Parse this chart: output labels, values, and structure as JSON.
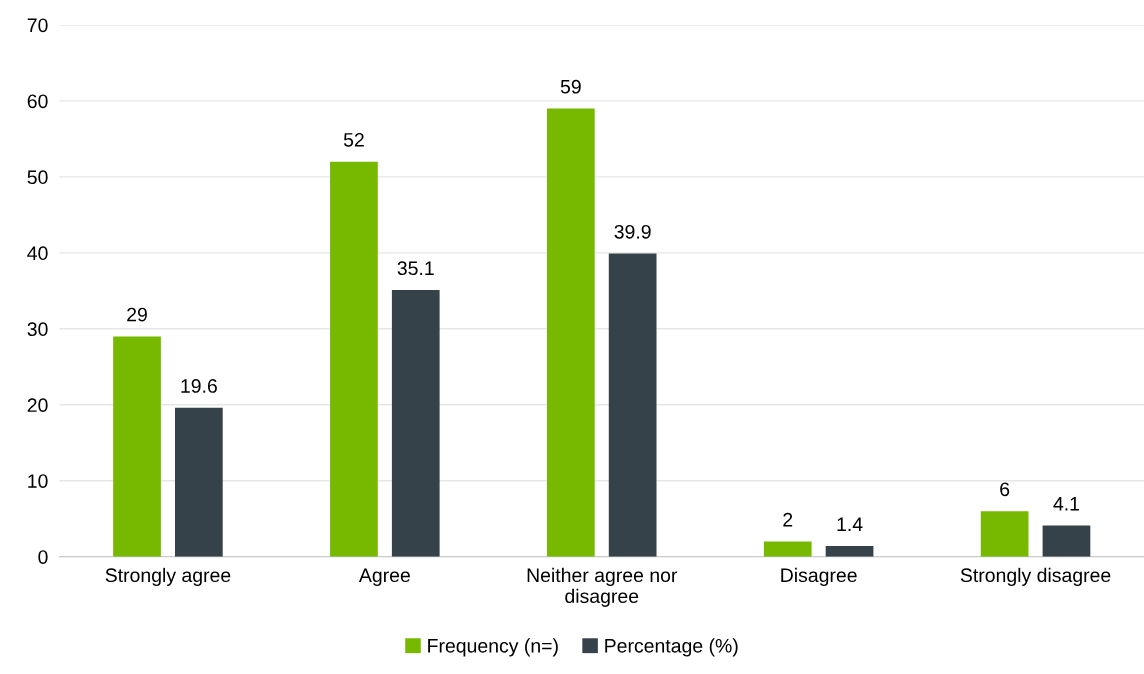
{
  "chart_data": {
    "type": "bar",
    "categories": [
      "Strongly agree",
      "Agree",
      "Neither agree nor disagree",
      "Disagree",
      "Strongly disagree"
    ],
    "series": [
      {
        "name": "Frequency (n=)",
        "color": "#76b900",
        "values": [
          29,
          52,
          59,
          2,
          6
        ]
      },
      {
        "name": "Percentage (%)",
        "color": "#36424a",
        "values": [
          19.6,
          35.1,
          39.9,
          1.4,
          4.1
        ]
      }
    ],
    "ylim": [
      0,
      70
    ],
    "yticks": [
      0,
      10,
      20,
      30,
      40,
      50,
      60,
      70
    ],
    "grid": "y",
    "legend": "bottom",
    "data_labels": true
  }
}
